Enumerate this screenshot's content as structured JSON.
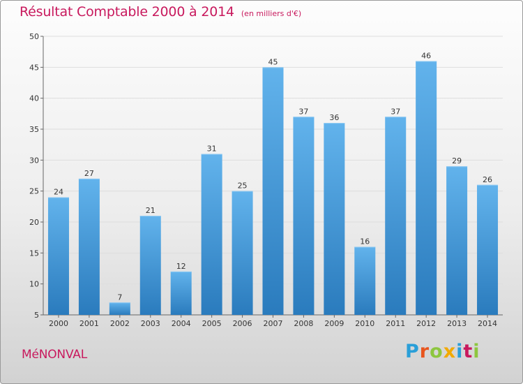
{
  "title": "Résultat Comptable 2000 à 2014",
  "title_unit": "(en milliers d'€)",
  "commune": "MéNONVAL",
  "logo": {
    "letters": [
      "P",
      "r",
      "o",
      "x",
      "i",
      "t",
      "i"
    ],
    "colors": [
      "#2a9fd8",
      "#e8551e",
      "#8dc63f",
      "#f2a900",
      "#2a9fd8",
      "#c8195d",
      "#8dc63f"
    ]
  },
  "colors": {
    "title": "#c8195d",
    "bar_top": "#62b3ec",
    "bar_bottom": "#2a7bbd",
    "axis": "#666666",
    "grid": "#dddddd"
  },
  "chart_data": {
    "type": "bar",
    "title": "Résultat Comptable 2000 à 2014",
    "unit": "(en milliers d'€)",
    "categories": [
      "2000",
      "2001",
      "2002",
      "2003",
      "2004",
      "2005",
      "2006",
      "2007",
      "2008",
      "2009",
      "2010",
      "2011",
      "2012",
      "2013",
      "2014"
    ],
    "values": [
      24,
      27,
      7,
      21,
      12,
      31,
      25,
      45,
      37,
      36,
      16,
      37,
      46,
      29,
      26
    ],
    "ylim": [
      5,
      50
    ],
    "yticks": [
      5,
      10,
      15,
      20,
      25,
      30,
      35,
      40,
      45,
      50
    ],
    "grid": true,
    "legend": "none"
  }
}
